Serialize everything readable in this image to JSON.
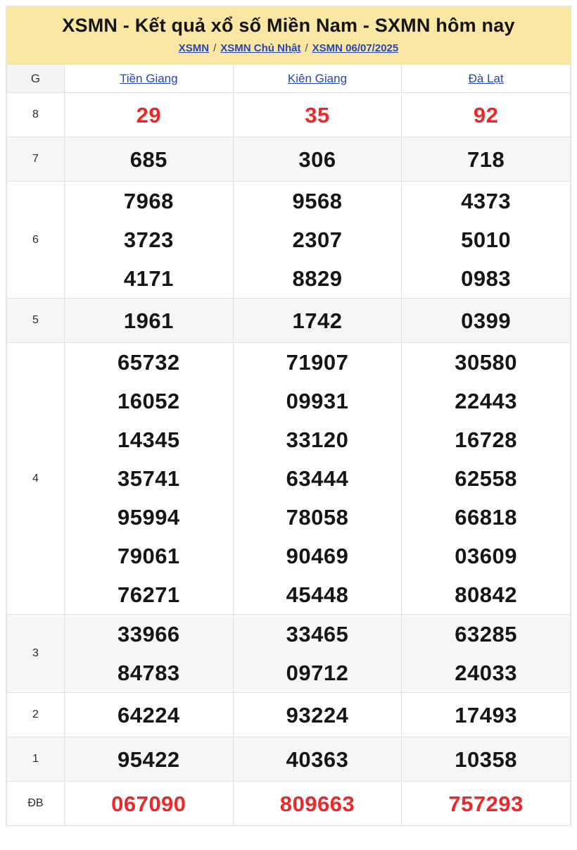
{
  "header": {
    "title": "XSMN - Kết quả xổ số Miền Nam - SXMN hôm nay",
    "breadcrumb": [
      "XSMN",
      "XSMN Chủ Nhật",
      "XSMN 06/07/2025"
    ],
    "separator": "/"
  },
  "table": {
    "corner_label": "G",
    "columns": [
      "Tiền Giang",
      "Kiên Giang",
      "Đà Lạt"
    ],
    "rows": [
      {
        "prize": "8",
        "highlight": true,
        "shaded": false,
        "cells": [
          [
            "29"
          ],
          [
            "35"
          ],
          [
            "92"
          ]
        ]
      },
      {
        "prize": "7",
        "highlight": false,
        "shaded": true,
        "cells": [
          [
            "685"
          ],
          [
            "306"
          ],
          [
            "718"
          ]
        ]
      },
      {
        "prize": "6",
        "highlight": false,
        "shaded": false,
        "cells": [
          [
            "7968",
            "3723",
            "4171"
          ],
          [
            "9568",
            "2307",
            "8829"
          ],
          [
            "4373",
            "5010",
            "0983"
          ]
        ]
      },
      {
        "prize": "5",
        "highlight": false,
        "shaded": true,
        "cells": [
          [
            "1961"
          ],
          [
            "1742"
          ],
          [
            "0399"
          ]
        ]
      },
      {
        "prize": "4",
        "highlight": false,
        "shaded": false,
        "cells": [
          [
            "65732",
            "16052",
            "14345",
            "35741",
            "95994",
            "79061",
            "76271"
          ],
          [
            "71907",
            "09931",
            "33120",
            "63444",
            "78058",
            "90469",
            "45448"
          ],
          [
            "30580",
            "22443",
            "16728",
            "62558",
            "66818",
            "03609",
            "80842"
          ]
        ]
      },
      {
        "prize": "3",
        "highlight": false,
        "shaded": true,
        "cells": [
          [
            "33966",
            "84783"
          ],
          [
            "33465",
            "09712"
          ],
          [
            "63285",
            "24033"
          ]
        ]
      },
      {
        "prize": "2",
        "highlight": false,
        "shaded": false,
        "cells": [
          [
            "64224"
          ],
          [
            "93224"
          ],
          [
            "17493"
          ]
        ]
      },
      {
        "prize": "1",
        "highlight": false,
        "shaded": true,
        "cells": [
          [
            "95422"
          ],
          [
            "40363"
          ],
          [
            "10358"
          ]
        ]
      },
      {
        "prize": "ĐB",
        "highlight": true,
        "shaded": false,
        "cells": [
          [
            "067090"
          ],
          [
            "809663"
          ],
          [
            "757293"
          ]
        ]
      }
    ]
  },
  "colors": {
    "banner_bg": "#f9e7a3",
    "highlight_red": "#ee2828",
    "link_blue": "#2646b4",
    "row_shade": "#f6f6f6",
    "border": "#e2e2e2"
  }
}
